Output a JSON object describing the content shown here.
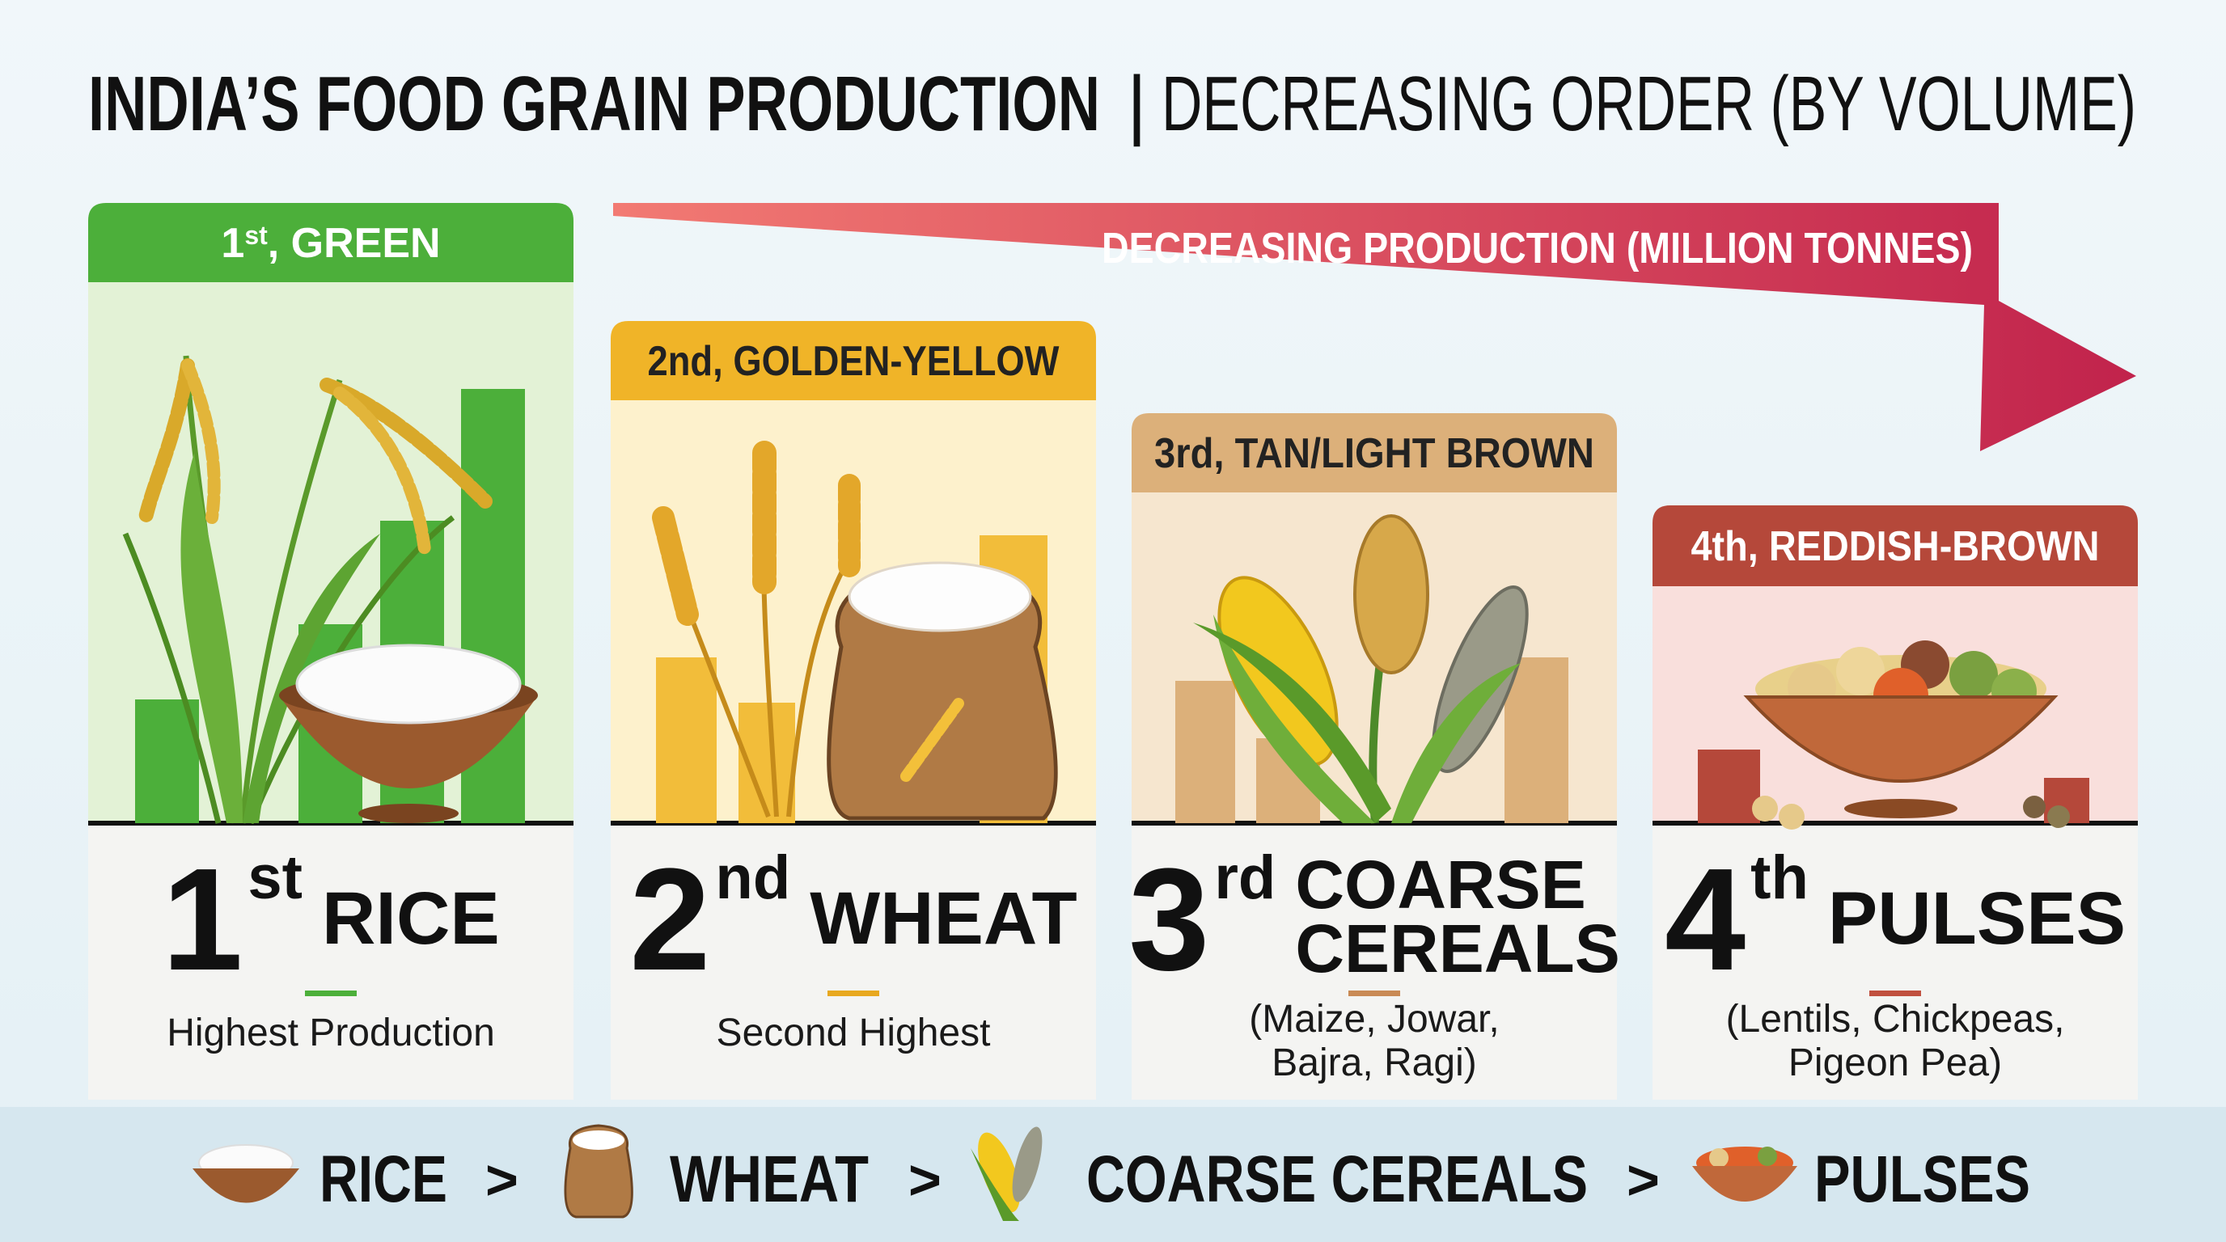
{
  "title": {
    "bold": "INDIA’S FOOD GRAIN PRODUCTION",
    "separator": "|",
    "light": "DECREASING ORDER (BY VOLUME)"
  },
  "arrow_label": "DECREASING PRODUCTION (MILLION TONNES)",
  "cards": [
    {
      "header": {
        "rank": "1",
        "suffix": "st",
        "label": ", GREEN"
      },
      "rank": "1",
      "suffix": "st",
      "name_lines": [
        "RICE"
      ],
      "description_lines": [
        "Highest Production"
      ]
    },
    {
      "header": "2nd, GOLDEN-YELLOW",
      "rank": "2",
      "suffix": "nd",
      "name_lines": [
        "WHEAT"
      ],
      "description_lines": [
        "Second Highest"
      ]
    },
    {
      "header": "3rd, TAN/LIGHT BROWN",
      "rank": "3",
      "suffix": "rd",
      "name_lines": [
        "COARSE",
        "CEREALS"
      ],
      "description_lines": [
        "(Maize, Jowar,",
        "Bajra, Ragi)"
      ]
    },
    {
      "header": "4th, REDDISH-BROWN",
      "rank": "4",
      "suffix": "th",
      "name_lines": [
        "PULSES"
      ],
      "description_lines": [
        "(Lentils, Chickpeas,",
        "Pigeon Pea)"
      ]
    }
  ],
  "footer": {
    "items": [
      "RICE",
      "WHEAT",
      "COARSE CEREALS",
      "PULSES"
    ],
    "separators": [
      ">",
      ">",
      ">"
    ]
  }
}
